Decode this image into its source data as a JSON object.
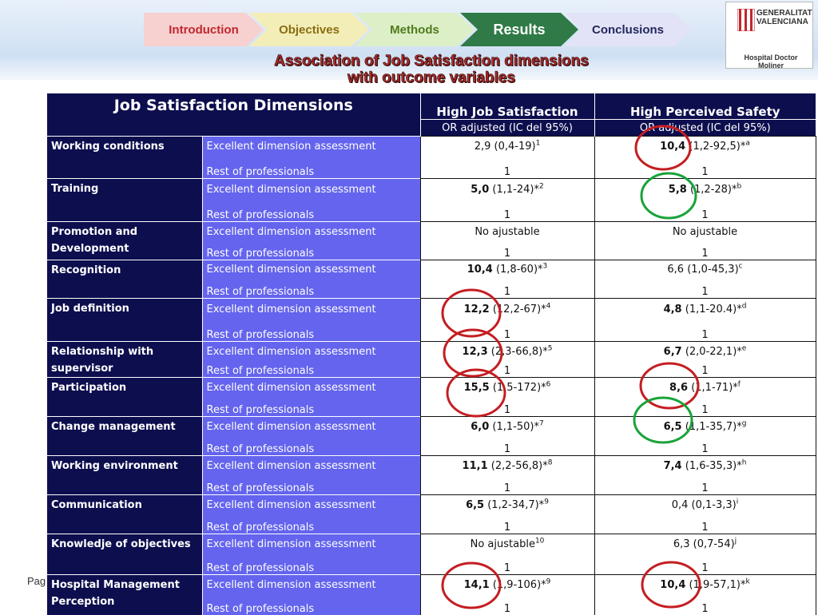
{
  "nav": {
    "items": [
      {
        "label": "Introduction"
      },
      {
        "label": "Objectives"
      },
      {
        "label": "Methods"
      },
      {
        "label": "Results"
      },
      {
        "label": "Conclusions"
      }
    ],
    "colors": {
      "introduction": "#f7d0d0",
      "objectives": "#f3eeb8",
      "methods": "#dcefc6",
      "results": "#2f7a47",
      "conclusions": "#e3e3f7"
    }
  },
  "logo": {
    "line1": "GENERALITAT",
    "line2": "VALENCIANA",
    "sub": "Hospital Doctor Moliner"
  },
  "title": {
    "line1": "Association of Job Satisfaction dimensions",
    "line2": "with outcome variables"
  },
  "page_fragment": "Pag",
  "table": {
    "header": {
      "dimensions": "Job Satisfaction Dimensions",
      "col1": "High Job Satisfaction",
      "col2": "High Perceived Safety",
      "col1_sub": "OR adjusted  (IC del 95%)",
      "col2_sub": "OR adjusted   (IC del 95%)"
    },
    "categories": {
      "excellent": "Excellent dimension assessment",
      "rest": "Rest of professionals"
    },
    "reference": "1",
    "rows": [
      {
        "dim": "Working conditions",
        "js_bold": "",
        "js": "2,9 (0,4-19)",
        "js_sup": "1",
        "ps_bold": "10,4",
        "ps": " (1,2-92,5)*",
        "ps_sup": "a"
      },
      {
        "dim": "Training",
        "js_bold": "5,0",
        "js": " (1,1-24)*",
        "js_sup": "2",
        "ps_bold": "5,8",
        "ps": " (1,2-28)*",
        "ps_sup": "b"
      },
      {
        "dim": "Promotion and Development",
        "js_bold": "",
        "js": "No ajustable",
        "js_sup": "",
        "ps_bold": "",
        "ps": "No ajustable",
        "ps_sup": ""
      },
      {
        "dim": "Recognition",
        "js_bold": "10,4",
        "js": " (1,8-60)*",
        "js_sup": "3",
        "ps_bold": "",
        "ps": "6,6 (1,0-45,3)",
        "ps_sup": "c"
      },
      {
        "dim": "Job definition",
        "js_bold": "12,2",
        "js": " (12,2-67)*",
        "js_sup": "4",
        "ps_bold": "4,8",
        "ps": " (1,1-20.4)*",
        "ps_sup": "d"
      },
      {
        "dim": "Relationship with supervisor",
        "js_bold": "12,3",
        "js": " (2,3-66,8)*",
        "js_sup": "5",
        "ps_bold": "6,7",
        "ps": " (2,0-22,1)*",
        "ps_sup": "e"
      },
      {
        "dim": "Participation",
        "js_bold": "15,5",
        "js": " (1,5-172)*",
        "js_sup": "6",
        "ps_bold": "8,6",
        "ps": " (1,1-71)*",
        "ps_sup": "f"
      },
      {
        "dim": "Change management",
        "js_bold": "6,0",
        "js": " (1,1-50)*",
        "js_sup": "7",
        "ps_bold": "6,5",
        "ps": " (1,1-35,7)*",
        "ps_sup": "g"
      },
      {
        "dim": "Working environment",
        "js_bold": "11,1",
        "js": " (2,2-56,8)*",
        "js_sup": "8",
        "ps_bold": "7,4",
        "ps": " (1,6-35,3)*",
        "ps_sup": "h"
      },
      {
        "dim": "Communication",
        "js_bold": "6,5",
        "js": " (1,2-34,7)*",
        "js_sup": "9",
        "ps_bold": "",
        "ps": "0,4 (0,1-3,3)",
        "ps_sup": "i"
      },
      {
        "dim": "Knowledje of objectives",
        "js_bold": "",
        "js": "No ajustable",
        "js_sup": "10",
        "ps_bold": "",
        "ps": "6,3 (0,7-54)",
        "ps_sup": "j"
      },
      {
        "dim": "Hospital Management Perception",
        "js_bold": "14,1",
        "js": " (1,9-106)*",
        "js_sup": "9",
        "ps_bold": "10,4",
        "ps": " (1,9-57,1)*",
        "ps_sup": "k"
      }
    ]
  },
  "annotations": [
    {
      "row": "Working conditions",
      "column": "High Perceived Safety",
      "color": "red"
    },
    {
      "row": "Training",
      "column": "High Perceived Safety",
      "color": "green"
    },
    {
      "row": "Job definition",
      "column": "High Job Satisfaction",
      "color": "red"
    },
    {
      "row": "Relationship with supervisor",
      "column": "High Job Satisfaction",
      "color": "red"
    },
    {
      "row": "Participation",
      "column": "High Job Satisfaction",
      "color": "red"
    },
    {
      "row": "Participation",
      "column": "High Perceived Safety",
      "color": "red"
    },
    {
      "row": "Change management",
      "column": "High Perceived Safety",
      "color": "green"
    },
    {
      "row": "Hospital Management Perception",
      "column": "High Job Satisfaction",
      "color": "red"
    },
    {
      "row": "Hospital Management Perception",
      "column": "High Perceived Safety",
      "color": "red"
    }
  ]
}
